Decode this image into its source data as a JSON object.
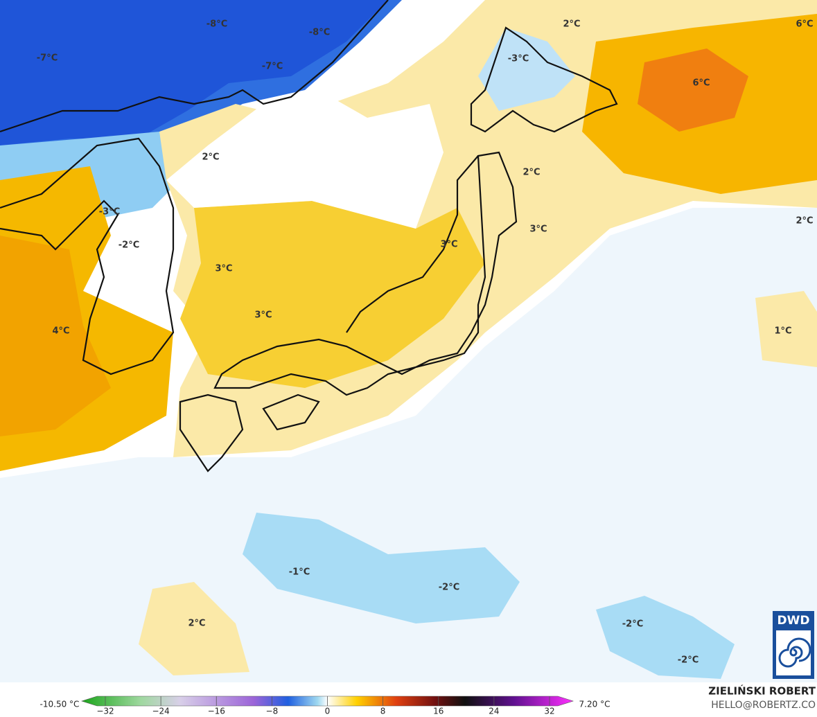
{
  "map_labels": [
    "-8°C",
    "-8°C",
    "-7°C",
    "-7°C",
    "2°C",
    "6°C",
    "-3°C",
    "6°C",
    "2°C",
    "2°C",
    "-3°C",
    "3°C",
    "2°C",
    "-2°C",
    "3°C",
    "3°C",
    "3°C",
    "4°C",
    "1°C",
    "-1°C",
    "-2°C",
    "2°C",
    "-2°C",
    "-2°C"
  ],
  "colorbar": {
    "min_label": "-10.50 °C",
    "max_label": "7.20 °C",
    "lim": [
      -32,
      32
    ],
    "ticks": [
      {
        "value": -32,
        "label": "−32"
      },
      {
        "value": -24,
        "label": "−24"
      },
      {
        "value": -16,
        "label": "−16"
      },
      {
        "value": -8,
        "label": "−8"
      },
      0,
      8,
      16,
      24,
      32
    ]
  },
  "credits": {
    "author": "ZIELIŃSKI ROBERT",
    "contact": "HELLO@ROBERTZ.CO",
    "logo": "DWD"
  }
}
